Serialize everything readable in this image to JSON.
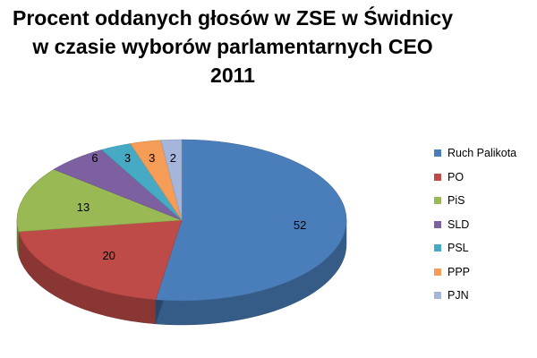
{
  "chart_data": {
    "type": "pie",
    "title_lines": [
      "Procent oddanych głosów w ZSE w Świdnicy",
      "w czasie wyborów parlamentarnych CEO",
      "2011"
    ],
    "categories": [
      "Ruch Palikota",
      "PO",
      "PiS",
      "SLD",
      "PSL",
      "PPP",
      "PJN"
    ],
    "values": [
      52,
      20,
      13,
      6,
      3,
      3,
      2
    ],
    "data_labels": [
      "52",
      "20",
      "13",
      "6",
      "3",
      "3",
      "2"
    ],
    "colors": [
      "#4A7EBB",
      "#BE4B48",
      "#98B954",
      "#7D60A0",
      "#46AAC5",
      "#F59D56",
      "#A5B6DA"
    ],
    "style": "3d-exploded-none",
    "legend_position": "right"
  }
}
